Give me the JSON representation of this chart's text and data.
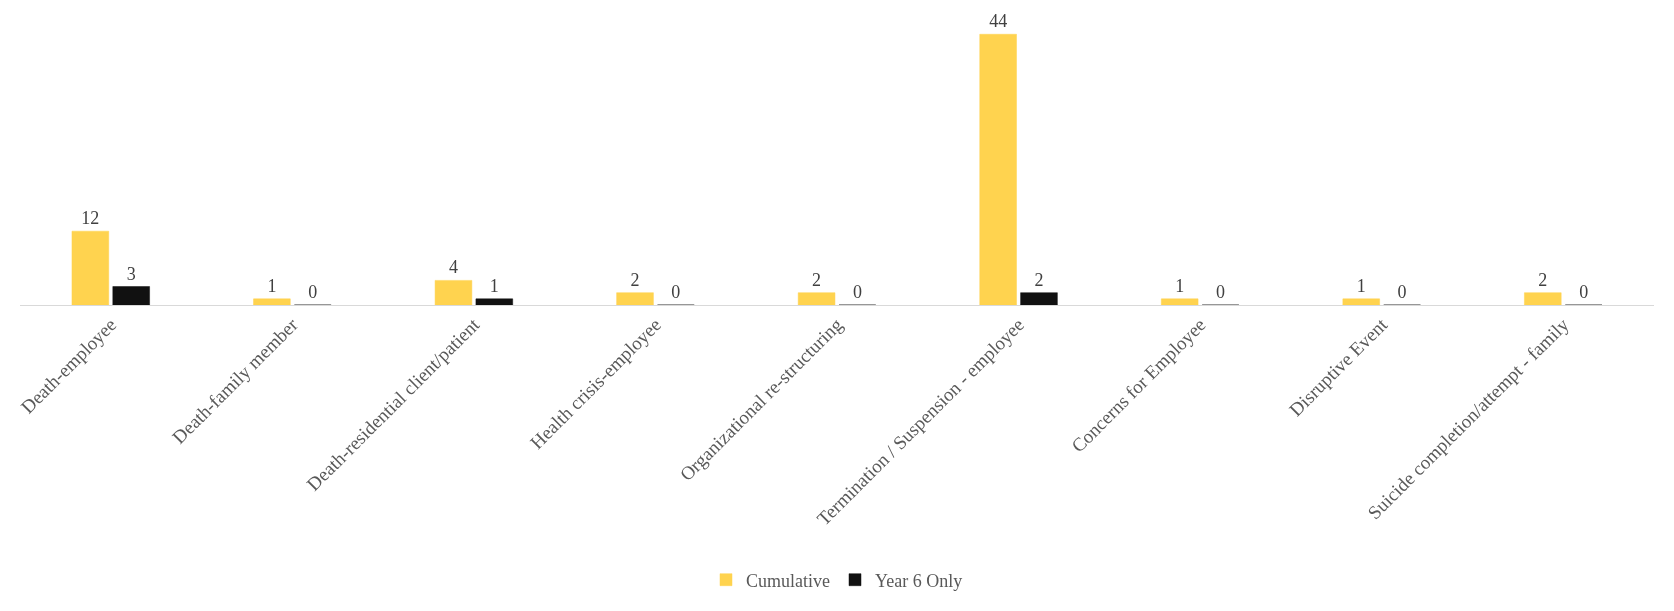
{
  "chart_data": {
    "type": "bar",
    "categories": [
      "Death-employee",
      "Death-family member",
      "Death-residential client/patient",
      "Health crisis-employee",
      "Organizational re-structuring",
      "Termination / Suspension - employee",
      "Concerns for Employee",
      "Disruptive Event",
      "Suicide completion/attempt - family"
    ],
    "series": [
      {
        "name": "Cumulative",
        "color": "#ffd34f",
        "values": [
          12,
          1,
          4,
          2,
          2,
          44,
          1,
          1,
          2
        ]
      },
      {
        "name": "Year 6 Only",
        "color": "#111111",
        "values": [
          3,
          0,
          1,
          0,
          0,
          2,
          0,
          0,
          0
        ]
      }
    ],
    "data_labels": true,
    "legend": "bottom"
  }
}
